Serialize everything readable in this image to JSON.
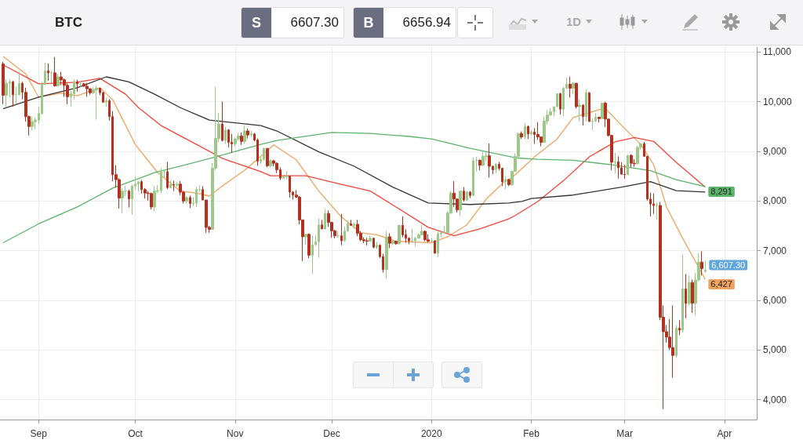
{
  "chart_data": {
    "type": "candlestick",
    "title": "BTC",
    "annotations": [
      "S",
      "6607.30",
      "B",
      "6656.94",
      "1D",
      {
        "text": "6,607.30",
        "x": "2020-03-26",
        "y": 6607.3
      }
    ],
    "xlim": [
      "2019-08-20",
      "2020-04-11"
    ],
    "xticks": [
      {
        "value": "2019-09-01",
        "label": "Sep"
      },
      {
        "value": "2019-10-01",
        "label": "Oct"
      },
      {
        "value": "2019-11-01",
        "label": "Nov"
      },
      {
        "value": "2019-12-01",
        "label": "Dec"
      },
      {
        "value": "2020-01-01",
        "label": "2020"
      },
      {
        "value": "2020-02-01",
        "label": "Feb"
      },
      {
        "value": "2020-03-01",
        "label": "Mar"
      },
      {
        "value": "2020-04-01",
        "label": "Apr"
      }
    ],
    "ylim": [
      3600,
      11100
    ],
    "yticks": [
      {
        "value": 4000,
        "label": "4,000"
      },
      {
        "value": 5000,
        "label": "5,000"
      },
      {
        "value": 6000,
        "label": "6,000"
      },
      {
        "value": 7000,
        "label": "7,000"
      },
      {
        "value": 8000,
        "label": "8,000"
      },
      {
        "value": 9000,
        "label": "9,000"
      },
      {
        "value": 10000,
        "label": "10,000"
      },
      {
        "value": 11000,
        "label": "11,000"
      }
    ],
    "grid": true,
    "x": [
      "2019-08-21",
      "2019-08-22",
      "2019-08-23",
      "2019-08-24",
      "2019-08-25",
      "2019-08-26",
      "2019-08-27",
      "2019-08-28",
      "2019-08-29",
      "2019-08-30",
      "2019-08-31",
      "2019-09-01",
      "2019-09-02",
      "2019-09-03",
      "2019-09-04",
      "2019-09-05",
      "2019-09-06",
      "2019-09-07",
      "2019-09-08",
      "2019-09-09",
      "2019-09-10",
      "2019-09-11",
      "2019-09-12",
      "2019-09-13",
      "2019-09-14",
      "2019-09-15",
      "2019-09-16",
      "2019-09-17",
      "2019-09-18",
      "2019-09-19",
      "2019-09-20",
      "2019-09-21",
      "2019-09-22",
      "2019-09-23",
      "2019-09-24",
      "2019-09-25",
      "2019-09-26",
      "2019-09-27",
      "2019-09-28",
      "2019-09-29",
      "2019-09-30",
      "2019-10-01",
      "2019-10-02",
      "2019-10-03",
      "2019-10-04",
      "2019-10-05",
      "2019-10-06",
      "2019-10-07",
      "2019-10-08",
      "2019-10-09",
      "2019-10-10",
      "2019-10-11",
      "2019-10-12",
      "2019-10-13",
      "2019-10-14",
      "2019-10-15",
      "2019-10-16",
      "2019-10-17",
      "2019-10-18",
      "2019-10-19",
      "2019-10-20",
      "2019-10-21",
      "2019-10-22",
      "2019-10-23",
      "2019-10-24",
      "2019-10-25",
      "2019-10-26",
      "2019-10-27",
      "2019-10-28",
      "2019-10-29",
      "2019-10-30",
      "2019-10-31",
      "2019-11-01",
      "2019-11-02",
      "2019-11-03",
      "2019-11-04",
      "2019-11-05",
      "2019-11-06",
      "2019-11-07",
      "2019-11-08",
      "2019-11-09",
      "2019-11-10",
      "2019-11-11",
      "2019-11-12",
      "2019-11-13",
      "2019-11-14",
      "2019-11-15",
      "2019-11-16",
      "2019-11-17",
      "2019-11-18",
      "2019-11-19",
      "2019-11-20",
      "2019-11-21",
      "2019-11-22",
      "2019-11-23",
      "2019-11-24",
      "2019-11-25",
      "2019-11-26",
      "2019-11-27",
      "2019-11-28",
      "2019-11-29",
      "2019-11-30",
      "2019-12-01",
      "2019-12-02",
      "2019-12-03",
      "2019-12-04",
      "2019-12-05",
      "2019-12-06",
      "2019-12-07",
      "2019-12-08",
      "2019-12-09",
      "2019-12-10",
      "2019-12-11",
      "2019-12-12",
      "2019-12-13",
      "2019-12-14",
      "2019-12-15",
      "2019-12-16",
      "2019-12-17",
      "2019-12-18",
      "2019-12-19",
      "2019-12-20",
      "2019-12-21",
      "2019-12-22",
      "2019-12-23",
      "2019-12-24",
      "2019-12-25",
      "2019-12-26",
      "2019-12-27",
      "2019-12-28",
      "2019-12-29",
      "2019-12-30",
      "2019-12-31",
      "2020-01-01",
      "2020-01-02",
      "2020-01-03",
      "2020-01-04",
      "2020-01-05",
      "2020-01-06",
      "2020-01-07",
      "2020-01-08",
      "2020-01-09",
      "2020-01-10",
      "2020-01-11",
      "2020-01-12",
      "2020-01-13",
      "2020-01-14",
      "2020-01-15",
      "2020-01-16",
      "2020-01-17",
      "2020-01-18",
      "2020-01-19",
      "2020-01-20",
      "2020-01-21",
      "2020-01-22",
      "2020-01-23",
      "2020-01-24",
      "2020-01-25",
      "2020-01-26",
      "2020-01-27",
      "2020-01-28",
      "2020-01-29",
      "2020-01-30",
      "2020-01-31",
      "2020-02-01",
      "2020-02-02",
      "2020-02-03",
      "2020-02-04",
      "2020-02-05",
      "2020-02-06",
      "2020-02-07",
      "2020-02-08",
      "2020-02-09",
      "2020-02-10",
      "2020-02-11",
      "2020-02-12",
      "2020-02-13",
      "2020-02-14",
      "2020-02-15",
      "2020-02-16",
      "2020-02-17",
      "2020-02-18",
      "2020-02-19",
      "2020-02-20",
      "2020-02-21",
      "2020-02-22",
      "2020-02-23",
      "2020-02-24",
      "2020-02-25",
      "2020-02-26",
      "2020-02-27",
      "2020-02-28",
      "2020-02-29",
      "2020-03-01",
      "2020-03-02",
      "2020-03-03",
      "2020-03-04",
      "2020-03-05",
      "2020-03-06",
      "2020-03-07",
      "2020-03-08",
      "2020-03-09",
      "2020-03-10",
      "2020-03-11",
      "2020-03-12",
      "2020-03-13",
      "2020-03-14",
      "2020-03-15",
      "2020-03-16",
      "2020-03-17",
      "2020-03-18",
      "2020-03-19",
      "2020-03-20",
      "2020-03-21",
      "2020-03-22",
      "2020-03-23",
      "2020-03-24",
      "2020-03-25",
      "2020-03-26"
    ],
    "ohlc": [
      [
        10760,
        10800,
        9950,
        10130
      ],
      [
        10130,
        10450,
        9900,
        10370
      ],
      [
        10370,
        10450,
        10080,
        10400
      ],
      [
        10400,
        10420,
        9900,
        10140
      ],
      [
        10140,
        10300,
        9950,
        10140
      ],
      [
        10140,
        10600,
        10130,
        10370
      ],
      [
        10370,
        10400,
        10050,
        10190
      ],
      [
        10190,
        10280,
        9600,
        9700
      ],
      [
        9700,
        9720,
        9320,
        9500
      ],
      [
        9500,
        9700,
        9420,
        9600
      ],
      [
        9600,
        9680,
        9450,
        9630
      ],
      [
        9630,
        9900,
        9550,
        9760
      ],
      [
        9760,
        10400,
        9740,
        10350
      ],
      [
        10350,
        10780,
        10330,
        10620
      ],
      [
        10620,
        10770,
        10420,
        10580
      ],
      [
        10580,
        10620,
        10380,
        10580
      ],
      [
        10580,
        10900,
        10300,
        10320
      ],
      [
        10320,
        10560,
        10300,
        10500
      ],
      [
        10500,
        10600,
        10330,
        10440
      ],
      [
        10440,
        10470,
        10100,
        10330
      ],
      [
        10330,
        10370,
        9950,
        10100
      ],
      [
        10100,
        10220,
        9900,
        10160
      ],
      [
        10160,
        10450,
        10050,
        10400
      ],
      [
        10400,
        10440,
        10200,
        10360
      ],
      [
        10360,
        10420,
        10300,
        10360
      ],
      [
        10360,
        10380,
        10300,
        10310
      ],
      [
        10310,
        10380,
        10100,
        10260
      ],
      [
        10260,
        10270,
        10140,
        10180
      ],
      [
        10180,
        10290,
        10150,
        10240
      ],
      [
        10240,
        10320,
        9640,
        10270
      ],
      [
        10270,
        10280,
        10130,
        10180
      ],
      [
        10180,
        10200,
        9980,
        9990
      ],
      [
        9990,
        10080,
        9900,
        10020
      ],
      [
        10020,
        10050,
        9620,
        9700
      ],
      [
        9700,
        9810,
        8400,
        8530
      ],
      [
        8530,
        8720,
        8270,
        8430
      ],
      [
        8430,
        8460,
        7850,
        8060
      ],
      [
        8060,
        8260,
        7760,
        8200
      ],
      [
        8200,
        8300,
        8100,
        8200
      ],
      [
        8200,
        8230,
        7870,
        8040
      ],
      [
        8040,
        8330,
        7720,
        8300
      ],
      [
        8300,
        8500,
        8230,
        8340
      ],
      [
        8340,
        8390,
        8190,
        8390
      ],
      [
        8390,
        8420,
        8150,
        8230
      ],
      [
        8230,
        8260,
        8050,
        8160
      ],
      [
        8160,
        8200,
        8010,
        8150
      ],
      [
        8150,
        8170,
        7830,
        7880
      ],
      [
        7880,
        8300,
        7790,
        8200
      ],
      [
        8200,
        8320,
        8160,
        8210
      ],
      [
        8210,
        8660,
        8160,
        8590
      ],
      [
        8590,
        8620,
        8480,
        8590
      ],
      [
        8590,
        8790,
        8240,
        8270
      ],
      [
        8270,
        8410,
        8270,
        8330
      ],
      [
        8330,
        8410,
        8200,
        8320
      ],
      [
        8320,
        8390,
        8290,
        8340
      ],
      [
        8340,
        8400,
        8120,
        8180
      ],
      [
        8180,
        8200,
        7950,
        8000
      ],
      [
        8000,
        8100,
        7950,
        8070
      ],
      [
        8070,
        8110,
        7860,
        7950
      ],
      [
        7950,
        8080,
        7900,
        7960
      ],
      [
        7960,
        8290,
        7880,
        8230
      ],
      [
        8230,
        8320,
        8180,
        8230
      ],
      [
        8230,
        8300,
        8020,
        8020
      ],
      [
        8020,
        8020,
        7360,
        7470
      ],
      [
        7470,
        7500,
        7360,
        7430
      ],
      [
        7430,
        8770,
        7420,
        8660
      ],
      [
        8660,
        10300,
        8620,
        9260
      ],
      [
        9260,
        9780,
        9180,
        9550
      ],
      [
        9550,
        10000,
        9200,
        9220
      ],
      [
        9220,
        9500,
        9150,
        9430
      ],
      [
        9430,
        9450,
        9080,
        9180
      ],
      [
        9180,
        9350,
        8970,
        9150
      ],
      [
        9150,
        9280,
        9100,
        9250
      ],
      [
        9250,
        9370,
        9220,
        9310
      ],
      [
        9310,
        9380,
        9130,
        9200
      ],
      [
        9200,
        9520,
        9150,
        9410
      ],
      [
        9410,
        9460,
        9260,
        9330
      ],
      [
        9330,
        9410,
        9290,
        9350
      ],
      [
        9350,
        9370,
        9200,
        9230
      ],
      [
        9230,
        9260,
        8710,
        8800
      ],
      [
        8800,
        8890,
        8750,
        8840
      ],
      [
        8840,
        9070,
        8810,
        9060
      ],
      [
        9060,
        9060,
        8680,
        8710
      ],
      [
        8710,
        8840,
        8670,
        8810
      ],
      [
        8810,
        8830,
        8700,
        8760
      ],
      [
        8760,
        8780,
        8560,
        8630
      ],
      [
        8630,
        8680,
        8420,
        8460
      ],
      [
        8460,
        8520,
        8450,
        8490
      ],
      [
        8490,
        8600,
        8440,
        8500
      ],
      [
        8500,
        8510,
        8070,
        8180
      ],
      [
        8180,
        8200,
        8030,
        8120
      ],
      [
        8120,
        8220,
        8060,
        8080
      ],
      [
        8080,
        8100,
        7530,
        7620
      ],
      [
        7620,
        7630,
        6790,
        7280
      ],
      [
        7280,
        7340,
        7120,
        7330
      ],
      [
        7330,
        7350,
        6850,
        6910
      ],
      [
        6910,
        7300,
        6530,
        7120
      ],
      [
        7120,
        7320,
        7100,
        7180
      ],
      [
        7180,
        7650,
        6860,
        7520
      ],
      [
        7520,
        7620,
        7430,
        7440
      ],
      [
        7440,
        7840,
        7430,
        7750
      ],
      [
        7750,
        7810,
        7480,
        7570
      ],
      [
        7570,
        7570,
        7260,
        7400
      ],
      [
        7400,
        7420,
        7250,
        7300
      ],
      [
        7300,
        7400,
        7260,
        7300
      ],
      [
        7300,
        7740,
        7110,
        7200
      ],
      [
        7200,
        7490,
        7180,
        7400
      ],
      [
        7400,
        7590,
        7380,
        7540
      ],
      [
        7540,
        7620,
        7500,
        7510
      ],
      [
        7510,
        7570,
        7440,
        7530
      ],
      [
        7530,
        7620,
        7290,
        7350
      ],
      [
        7350,
        7390,
        7190,
        7220
      ],
      [
        7220,
        7270,
        7150,
        7200
      ],
      [
        7200,
        7260,
        7110,
        7190
      ],
      [
        7190,
        7310,
        7190,
        7250
      ],
      [
        7250,
        7260,
        7050,
        7070
      ],
      [
        7070,
        7180,
        7030,
        7110
      ],
      [
        7110,
        7130,
        6850,
        6880
      ],
      [
        6880,
        6940,
        6560,
        6620
      ],
      [
        6620,
        7400,
        6440,
        7280
      ],
      [
        7280,
        7350,
        7050,
        7150
      ],
      [
        7150,
        7220,
        7120,
        7190
      ],
      [
        7190,
        7190,
        7120,
        7140
      ],
      [
        7140,
        7520,
        7130,
        7510
      ],
      [
        7510,
        7690,
        7270,
        7320
      ],
      [
        7320,
        7430,
        7160,
        7250
      ],
      [
        7250,
        7270,
        7130,
        7200
      ],
      [
        7200,
        7440,
        7160,
        7200
      ],
      [
        7200,
        7280,
        7090,
        7250
      ],
      [
        7250,
        7350,
        7250,
        7320
      ],
      [
        7320,
        7520,
        7310,
        7390
      ],
      [
        7390,
        7410,
        7190,
        7220
      ],
      [
        7220,
        7330,
        7170,
        7190
      ],
      [
        7190,
        7250,
        7170,
        7200
      ],
      [
        7200,
        7210,
        6940,
        6950
      ],
      [
        6950,
        7400,
        6870,
        7340
      ],
      [
        7340,
        7400,
        7270,
        7360
      ],
      [
        7360,
        7500,
        7350,
        7360
      ],
      [
        7360,
        7800,
        7360,
        7760
      ],
      [
        7760,
        8200,
        7740,
        8160
      ],
      [
        8160,
        8400,
        7880,
        8040
      ],
      [
        8040,
        8050,
        7770,
        7820
      ],
      [
        7820,
        8200,
        7700,
        8200
      ],
      [
        8200,
        8280,
        7990,
        8020
      ],
      [
        8020,
        8200,
        8000,
        8180
      ],
      [
        8180,
        8200,
        8060,
        8110
      ],
      [
        8110,
        8880,
        8100,
        8810
      ],
      [
        8810,
        8890,
        8600,
        8820
      ],
      [
        8820,
        8840,
        8620,
        8720
      ],
      [
        8720,
        8990,
        8700,
        8900
      ],
      [
        8900,
        8980,
        8800,
        8910
      ],
      [
        8910,
        9160,
        8470,
        8700
      ],
      [
        8700,
        8710,
        8540,
        8630
      ],
      [
        8630,
        8760,
        8560,
        8740
      ],
      [
        8740,
        8790,
        8620,
        8660
      ],
      [
        8660,
        8670,
        8300,
        8390
      ],
      [
        8390,
        8500,
        8240,
        8430
      ],
      [
        8430,
        8440,
        8300,
        8330
      ],
      [
        8330,
        8600,
        8310,
        8600
      ],
      [
        8600,
        8960,
        8580,
        8900
      ],
      [
        8900,
        9370,
        8880,
        9360
      ],
      [
        9360,
        9400,
        9250,
        9290
      ],
      [
        9290,
        9560,
        9240,
        9500
      ],
      [
        9500,
        9520,
        9250,
        9350
      ],
      [
        9350,
        9430,
        9320,
        9390
      ],
      [
        9390,
        9470,
        9150,
        9340
      ],
      [
        9340,
        9590,
        9230,
        9290
      ],
      [
        9290,
        9300,
        9100,
        9180
      ],
      [
        9180,
        9700,
        9170,
        9610
      ],
      [
        9610,
        9830,
        9540,
        9730
      ],
      [
        9730,
        9870,
        9720,
        9800
      ],
      [
        9800,
        9900,
        9700,
        9900
      ],
      [
        9900,
        10160,
        9890,
        10160
      ],
      [
        10160,
        10180,
        9740,
        9850
      ],
      [
        9850,
        10300,
        9710,
        10270
      ],
      [
        10270,
        10480,
        10260,
        10350
      ],
      [
        10350,
        10500,
        10080,
        10270
      ],
      [
        10270,
        10390,
        10150,
        10370
      ],
      [
        10370,
        10380,
        9860,
        9900
      ],
      [
        9900,
        10050,
        9600,
        9930
      ],
      [
        9930,
        9950,
        9520,
        9700
      ],
      [
        9700,
        10250,
        9600,
        10180
      ],
      [
        10180,
        10190,
        9600,
        9600
      ],
      [
        9600,
        9660,
        9430,
        9610
      ],
      [
        9610,
        9770,
        9590,
        9690
      ],
      [
        9690,
        9690,
        9580,
        9660
      ],
      [
        9660,
        9980,
        9660,
        9970
      ],
      [
        9970,
        10000,
        9490,
        9650
      ],
      [
        9650,
        9650,
        9300,
        9320
      ],
      [
        9320,
        9330,
        8620,
        8780
      ],
      [
        8780,
        8970,
        8560,
        8790
      ],
      [
        8790,
        8900,
        8450,
        8670
      ],
      [
        8670,
        8780,
        8540,
        8540
      ],
      [
        8540,
        8730,
        8450,
        8530
      ],
      [
        8530,
        8930,
        8530,
        8920
      ],
      [
        8920,
        8940,
        8680,
        8760
      ],
      [
        8760,
        8840,
        8690,
        8750
      ],
      [
        8750,
        9110,
        8740,
        9080
      ],
      [
        9080,
        9170,
        9030,
        9150
      ],
      [
        9150,
        9190,
        8900,
        8900
      ],
      [
        8900,
        8900,
        8010,
        8040
      ],
      [
        8040,
        8170,
        7690,
        7940
      ],
      [
        7940,
        8150,
        7740,
        7910
      ],
      [
        7910,
        7970,
        7620,
        7910
      ],
      [
        7910,
        7980,
        5600,
        5660
      ],
      [
        5660,
        5900,
        3810,
        5370
      ],
      [
        5370,
        5500,
        5150,
        5260
      ],
      [
        5260,
        5620,
        5000,
        5050
      ],
      [
        5050,
        5900,
        4440,
        4890
      ],
      [
        4890,
        5500,
        4850,
        5440
      ],
      [
        5440,
        5600,
        5300,
        5400
      ],
      [
        5400,
        6920,
        5350,
        6230
      ],
      [
        6230,
        6530,
        5640,
        5940
      ],
      [
        5940,
        6500,
        5900,
        6360
      ],
      [
        6360,
        6420,
        5750,
        5940
      ],
      [
        5940,
        6550,
        5700,
        6410
      ],
      [
        6410,
        6950,
        6380,
        6770
      ],
      [
        6770,
        6990,
        6500,
        6640
      ],
      [
        6580,
        6800,
        6560,
        6607.3
      ]
    ],
    "series": [
      {
        "type": "line",
        "color": "#f0a35e",
        "x": [
          "2019-08-21",
          "2019-08-28",
          "2019-09-01",
          "2019-09-08",
          "2019-09-13",
          "2019-09-20",
          "2019-09-24",
          "2019-10-01",
          "2019-10-08",
          "2019-10-15",
          "2019-10-20",
          "2019-10-24",
          "2019-10-28",
          "2019-11-04",
          "2019-11-09",
          "2019-11-13",
          "2019-11-20",
          "2019-11-27",
          "2019-12-04",
          "2019-12-10",
          "2019-12-15",
          "2019-12-21",
          "2020-01-01",
          "2020-01-06",
          "2020-01-12",
          "2020-01-18",
          "2020-01-24",
          "2020-01-26",
          "2020-02-02",
          "2020-02-09",
          "2020-02-14",
          "2020-02-22",
          "2020-02-24",
          "2020-03-01",
          "2020-03-06",
          "2020-03-10",
          "2020-03-14",
          "2020-03-19",
          "2020-03-26"
        ],
        "values": [
          10910,
          10560,
          10090,
          10170,
          10120,
          10280,
          10040,
          9140,
          8570,
          8200,
          8160,
          8100,
          8300,
          8620,
          8900,
          9130,
          8830,
          8200,
          7680,
          7360,
          7320,
          7190,
          7160,
          7280,
          7520,
          8040,
          8410,
          8470,
          8890,
          9250,
          9680,
          9840,
          9860,
          9460,
          9140,
          8730,
          7880,
          7250,
          6427
        ],
        "value_labels": [
          null,
          null,
          null,
          null,
          null,
          null,
          null,
          null,
          null,
          null,
          null,
          null,
          null,
          null,
          null,
          null,
          null,
          null,
          null,
          null,
          null,
          null,
          null,
          null,
          null,
          null,
          null,
          null,
          null,
          null,
          null,
          null,
          null,
          null,
          null,
          null,
          null,
          null,
          "6,427"
        ]
      },
      {
        "type": "line",
        "color": "#f0453a",
        "x": [
          "2019-08-21",
          "2019-09-01",
          "2019-09-13",
          "2019-09-20",
          "2019-09-28",
          "2019-10-02",
          "2019-10-09",
          "2019-10-20",
          "2019-10-28",
          "2019-11-09",
          "2019-11-12",
          "2019-11-23",
          "2019-12-03",
          "2019-12-13",
          "2019-12-21",
          "2019-12-31",
          "2020-01-08",
          "2020-01-16",
          "2020-01-25",
          "2020-01-27",
          "2020-02-03",
          "2020-02-11",
          "2020-02-19",
          "2020-02-27",
          "2020-03-04",
          "2020-03-10",
          "2020-03-17",
          "2020-03-26"
        ],
        "values": [
          10740,
          10360,
          10390,
          10470,
          10150,
          9880,
          9520,
          9140,
          8860,
          8590,
          8510,
          8510,
          8350,
          8200,
          7880,
          7470,
          7300,
          7440,
          7640,
          7710,
          7990,
          8410,
          8890,
          9190,
          9280,
          9200,
          8780,
          8280
        ]
      },
      {
        "type": "line",
        "color": "#333333",
        "x": [
          "2019-08-21",
          "2019-09-01",
          "2019-09-13",
          "2019-09-22",
          "2019-09-29",
          "2019-10-07",
          "2019-10-15",
          "2019-10-24",
          "2019-11-09",
          "2019-11-14",
          "2019-11-27",
          "2019-12-08",
          "2019-12-20",
          "2019-12-31",
          "2020-01-13",
          "2020-01-25",
          "2020-01-29",
          "2020-02-01",
          "2020-02-14",
          "2020-02-29",
          "2020-03-09",
          "2020-03-17",
          "2020-03-26"
        ],
        "values": [
          9860,
          10090,
          10280,
          10500,
          10400,
          10150,
          9880,
          9630,
          9520,
          9410,
          8990,
          8700,
          8280,
          7960,
          7930,
          7960,
          7990,
          8050,
          8120,
          8280,
          8390,
          8210,
          8180
        ]
      },
      {
        "type": "line",
        "color": "#5cb46a",
        "x": [
          "2019-08-21",
          "2019-09-01",
          "2019-09-13",
          "2019-09-24",
          "2019-10-07",
          "2019-10-25",
          "2019-11-09",
          "2019-11-14",
          "2019-12-01",
          "2019-12-13",
          "2019-12-25",
          "2020-01-01",
          "2020-01-13",
          "2020-01-25",
          "2020-01-27",
          "2020-02-03",
          "2020-02-14",
          "2020-02-26",
          "2020-03-09",
          "2020-03-17",
          "2020-03-26"
        ],
        "values": [
          7160,
          7540,
          7880,
          8260,
          8570,
          8870,
          9140,
          9220,
          9380,
          9360,
          9300,
          9250,
          9060,
          8900,
          8870,
          8840,
          8820,
          8730,
          8610,
          8430,
          8291
        ],
        "value_labels": [
          null,
          null,
          null,
          null,
          null,
          null,
          null,
          null,
          null,
          null,
          null,
          null,
          null,
          null,
          null,
          null,
          null,
          null,
          null,
          null,
          "8,291"
        ]
      }
    ]
  }
}
